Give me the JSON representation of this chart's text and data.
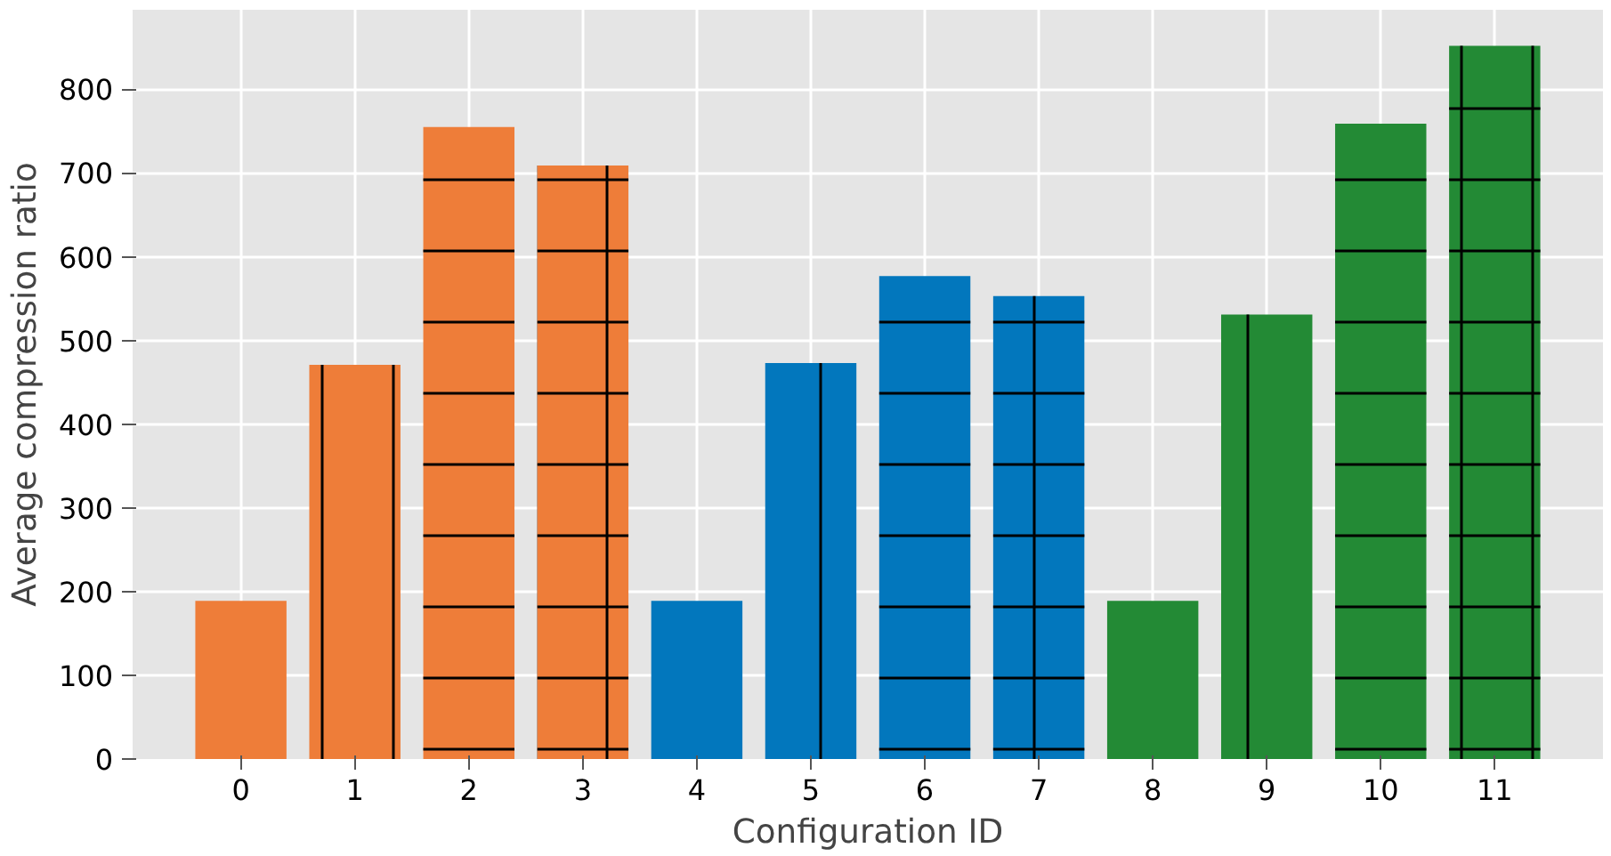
{
  "chart_data": {
    "type": "bar",
    "xlabel": "Configuration ID",
    "ylabel": "Average compression ratio",
    "categories": [
      "0",
      "1",
      "2",
      "3",
      "4",
      "5",
      "6",
      "7",
      "8",
      "9",
      "10",
      "11"
    ],
    "values": [
      189,
      471,
      755,
      709,
      189,
      473,
      577,
      553,
      189,
      531,
      759,
      852
    ],
    "colors": [
      "#ee7d39",
      "#ee7d39",
      "#ee7d39",
      "#ee7d39",
      "#0277bd",
      "#0277bd",
      "#0277bd",
      "#0277bd",
      "#238a35",
      "#238a35",
      "#238a35",
      "#238a35"
    ],
    "ylim": [
      0,
      895
    ],
    "yticks": [
      0,
      100,
      200,
      300,
      400,
      500,
      600,
      700,
      800
    ],
    "grid": true
  }
}
